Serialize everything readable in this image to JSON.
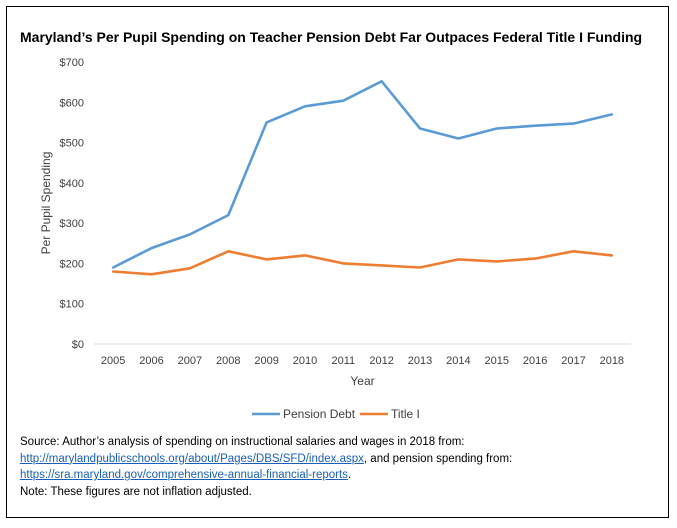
{
  "chart_data": {
    "type": "line",
    "title": "Maryland’s Per Pupil Spending on Teacher Pension Debt Far Outpaces Federal Title I Funding",
    "xlabel": "Year",
    "ylabel": "Per Pupil Spending",
    "ylim": [
      0,
      700
    ],
    "yticks": [
      "$0",
      "$100",
      "$200",
      "$300",
      "$400",
      "$500",
      "$600",
      "$700"
    ],
    "categories": [
      "2005",
      "2006",
      "2007",
      "2008",
      "2009",
      "2010",
      "2011",
      "2012",
      "2013",
      "2014",
      "2015",
      "2016",
      "2017",
      "2018"
    ],
    "series": [
      {
        "name": "Pension Debt",
        "color": "#5b9bd5",
        "values": [
          190,
          238,
          272,
          320,
          550,
          590,
          604,
          652,
          535,
          510,
          535,
          542,
          547,
          570
        ]
      },
      {
        "name": "Title I",
        "color": "#ed7d31",
        "values": [
          180,
          173,
          188,
          230,
          210,
          220,
          200,
          195,
          190,
          210,
          205,
          212,
          230,
          220
        ]
      }
    ],
    "legend_position": "bottom",
    "grid": false
  },
  "source": {
    "line1": "Source: Author’s analysis of spending on instructional salaries and wages in 2018 from:",
    "link1": "http://marylandpublicschools.org/about/Pages/DBS/SFD/index.aspx",
    "line2_suffix": ", and pension spending from:",
    "link2": "https://sra.maryland.gov/comprehensive-annual-financial-reports",
    "line3_suffix": ".",
    "note": "Note: These figures are not inflation adjusted."
  }
}
